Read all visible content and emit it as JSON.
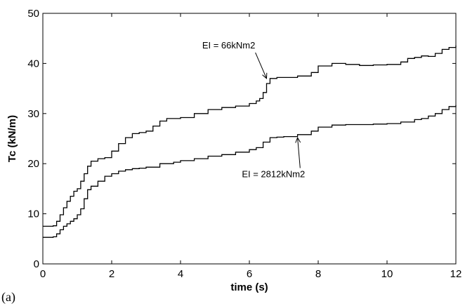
{
  "chart_data": {
    "type": "line",
    "xlabel": "time (s)",
    "ylabel": "Tc (kN/m)",
    "xlim": [
      0,
      12
    ],
    "ylim": [
      0,
      50
    ],
    "xticks": [
      0,
      2,
      4,
      6,
      8,
      10,
      12
    ],
    "yticks": [
      0,
      10,
      20,
      30,
      40,
      50
    ],
    "grid": false,
    "panel_label": "(a)",
    "series": [
      {
        "name": "EI = 66kNm2",
        "x": [
          0,
          0.3,
          0.4,
          0.5,
          0.6,
          0.7,
          0.8,
          0.9,
          1.0,
          1.1,
          1.2,
          1.3,
          1.4,
          1.6,
          1.8,
          2.0,
          2.2,
          2.4,
          2.6,
          2.8,
          3.0,
          3.2,
          3.4,
          3.6,
          4.0,
          4.4,
          4.8,
          5.2,
          5.6,
          6.0,
          6.2,
          6.3,
          6.4,
          6.5,
          6.6,
          6.8,
          7.0,
          7.4,
          7.8,
          8.0,
          8.4,
          8.8,
          9.2,
          9.6,
          10.0,
          10.4,
          10.6,
          10.8,
          11.0,
          11.2,
          11.4,
          11.6,
          11.8,
          12.0
        ],
        "y": [
          7.5,
          7.6,
          8.5,
          9.8,
          11.2,
          12.5,
          13.5,
          14.5,
          15.0,
          16.5,
          18.0,
          19.5,
          20.5,
          21.0,
          21.2,
          22.5,
          24.0,
          25.2,
          26.0,
          26.2,
          26.5,
          27.5,
          28.5,
          29.0,
          29.2,
          30.0,
          30.8,
          31.2,
          31.5,
          32.0,
          32.5,
          33.0,
          34.2,
          36.0,
          37.0,
          37.2,
          37.2,
          37.5,
          38.2,
          39.5,
          40.0,
          39.8,
          39.6,
          39.7,
          39.8,
          40.3,
          41.0,
          41.2,
          41.5,
          41.4,
          42.0,
          42.8,
          43.2,
          43.6
        ]
      },
      {
        "name": "EI = 2812kNm2",
        "x": [
          0,
          0.3,
          0.4,
          0.5,
          0.6,
          0.7,
          0.8,
          0.9,
          1.0,
          1.1,
          1.2,
          1.3,
          1.4,
          1.6,
          1.8,
          2.0,
          2.2,
          2.4,
          2.6,
          2.8,
          3.0,
          3.4,
          3.8,
          4.0,
          4.4,
          4.8,
          5.2,
          5.6,
          6.0,
          6.2,
          6.4,
          6.6,
          6.8,
          7.0,
          7.4,
          7.8,
          8.0,
          8.4,
          8.8,
          9.2,
          9.6,
          10.0,
          10.4,
          10.8,
          11.0,
          11.2,
          11.4,
          11.6,
          11.8,
          12.0
        ],
        "y": [
          5.3,
          5.4,
          6.0,
          6.8,
          7.5,
          8.0,
          8.5,
          9.0,
          9.8,
          11.0,
          13.0,
          14.8,
          15.5,
          16.5,
          17.5,
          18.0,
          18.5,
          18.8,
          19.0,
          19.1,
          19.3,
          20.0,
          20.3,
          20.6,
          21.0,
          21.5,
          21.8,
          22.3,
          22.8,
          23.2,
          24.3,
          25.2,
          25.3,
          25.4,
          25.8,
          26.5,
          27.3,
          27.7,
          27.8,
          27.8,
          27.9,
          28.0,
          28.3,
          28.8,
          29.0,
          29.5,
          30.0,
          30.8,
          31.4,
          31.7
        ]
      }
    ],
    "annotations": [
      {
        "text": "EI = 66kNm2",
        "series_index": 0,
        "point": [
          6.5,
          37.0
        ],
        "label_at": [
          5.4,
          43.0
        ]
      },
      {
        "text": "EI = 2812kNm2",
        "series_index": 1,
        "point": [
          7.4,
          25.2
        ],
        "label_at": [
          6.7,
          17.3
        ]
      }
    ]
  }
}
